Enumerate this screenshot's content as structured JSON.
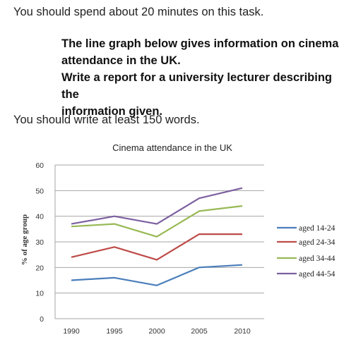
{
  "intro": "You should spend about 20 minutes on this task.",
  "task": {
    "line1": "The line graph below gives information on cinema",
    "line2": "attendance in the UK.",
    "line3": "Write a report for a university lecturer describing the",
    "line4": "information given."
  },
  "word_count_note": "You should write at least 150 words.",
  "chart_data": {
    "type": "line",
    "title": "Cinema attendance in the UK",
    "xlabel": "",
    "ylabel": "% of age group",
    "x": [
      "1990",
      "1995",
      "2000",
      "2005",
      "2010"
    ],
    "ylim": [
      0,
      60
    ],
    "yticks": [
      "0",
      "10",
      "20",
      "30",
      "40",
      "50",
      "60"
    ],
    "grid": true,
    "legend_position": "right",
    "series": [
      {
        "name": "aged 14-24",
        "color": "#4a7ebb",
        "values": [
          15,
          16,
          13,
          20,
          21
        ]
      },
      {
        "name": "aged 24-34",
        "color": "#be4b48",
        "values": [
          24,
          28,
          23,
          33,
          33
        ]
      },
      {
        "name": "aged 34-44",
        "color": "#98b954",
        "values": [
          36,
          37,
          32,
          42,
          44
        ]
      },
      {
        "name": "aged 44-54",
        "color": "#7d60a0",
        "values": [
          37,
          40,
          37,
          47,
          51
        ]
      }
    ]
  }
}
